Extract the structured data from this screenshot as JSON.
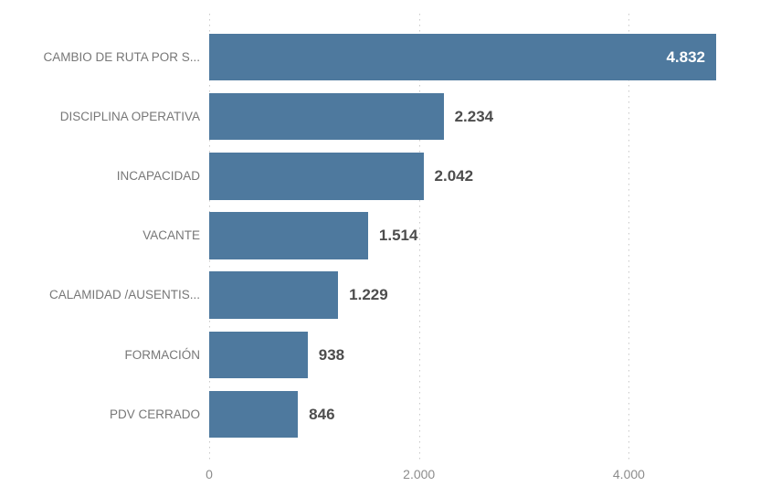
{
  "page": {
    "background": "#ffffff"
  },
  "chart_data": {
    "type": "bar",
    "orientation": "horizontal",
    "title": "",
    "xlabel": "",
    "ylabel": "",
    "categories": [
      "CAMBIO DE RUTA POR S...",
      "DISCIPLINA OPERATIVA",
      "INCAPACIDAD",
      "VACANTE",
      "CALAMIDAD /AUSENTIS...",
      "FORMACIÓN",
      "PDV CERRADO"
    ],
    "values": [
      4832,
      2234,
      2042,
      1514,
      1229,
      938,
      846
    ],
    "value_labels": [
      "4.832",
      "2.234",
      "2.042",
      "1.514",
      "1.229",
      "938",
      "846"
    ],
    "xlim": [
      0,
      5250
    ],
    "xticks": [
      {
        "value": 0,
        "label": "0"
      },
      {
        "value": 2000,
        "label": "2.000"
      },
      {
        "value": 4000,
        "label": "4.000"
      }
    ],
    "grid": "vertical-dotted",
    "legend": "none"
  },
  "style": {
    "bar_color": "#4e799e",
    "category_label_color": "#777777",
    "axis_label_color": "#8c8c8c",
    "value_label_color": "#4d4d4d",
    "value_label_inside_color": "#ffffff",
    "gridline_color": "#c9c9c9"
  }
}
